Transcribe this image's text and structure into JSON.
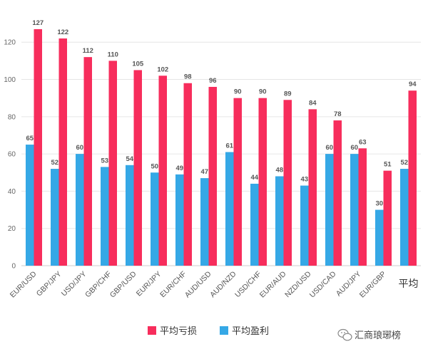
{
  "chart_data": {
    "type": "bar",
    "categories": [
      "EUR/USD",
      "GBP/JPY",
      "USD/JPY",
      "GBP/CHF",
      "GBP/USD",
      "EUR/JPY",
      "EUR/CHF",
      "AUD/USD",
      "AUD/NZD",
      "USD/CHF",
      "EUR/AUD",
      "NZD/USD",
      "USD/CAD",
      "AUD/JPY",
      "EUR/GBP",
      "平均"
    ],
    "series": [
      {
        "name": "平均盈利",
        "color": "#35a8e6",
        "values": [
          65,
          52,
          60,
          53,
          54,
          50,
          49,
          47,
          61,
          44,
          48,
          43,
          60,
          60,
          30,
          52
        ]
      },
      {
        "name": "平均亏损",
        "color": "#f72d5c",
        "values": [
          127,
          122,
          112,
          110,
          105,
          102,
          98,
          96,
          90,
          90,
          89,
          84,
          78,
          63,
          51,
          94
        ]
      }
    ],
    "ylim": [
      0,
      135
    ],
    "yticks": [
      0,
      20,
      40,
      60,
      80,
      100,
      120
    ],
    "grid": true,
    "legend": {
      "placement": "bottom",
      "order": [
        "平均亏损",
        "平均盈利"
      ]
    },
    "xlabel": "",
    "ylabel": ""
  },
  "watermark": {
    "text": "汇商琅琊榜",
    "icon": "wechat-icon"
  }
}
